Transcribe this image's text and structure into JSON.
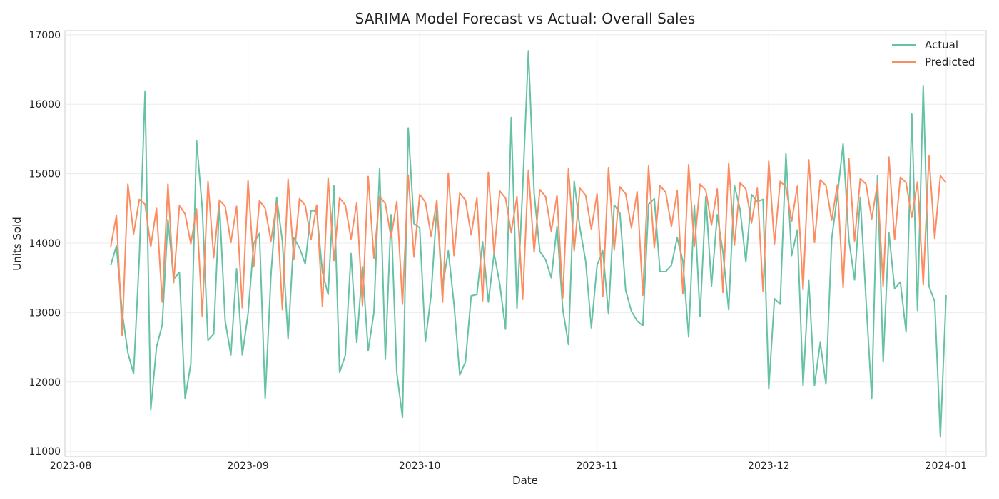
{
  "chart_data": {
    "type": "line",
    "title": "SARIMA Model Forecast vs Actual: Overall Sales",
    "xlabel": "Date",
    "ylabel": "Units Sold",
    "x_start": "2023-08-08",
    "x_end": "2024-01-01",
    "xlim": [
      "2023-07-31",
      "2024-01-08"
    ],
    "ylim": [
      10930,
      17060
    ],
    "x_ticks": [
      "2023-08",
      "2023-09",
      "2023-10",
      "2023-11",
      "2023-12",
      "2024-01"
    ],
    "x_tick_dates": [
      "2023-08-01",
      "2023-09-01",
      "2023-10-01",
      "2023-11-01",
      "2023-12-01",
      "2024-01-01"
    ],
    "y_ticks": [
      11000,
      12000,
      13000,
      14000,
      15000,
      16000,
      17000
    ],
    "grid": true,
    "legend_position": "top-right",
    "series": [
      {
        "name": "Actual",
        "color": "#66c2a5",
        "values": [
          13680,
          13960,
          13000,
          12420,
          12120,
          13800,
          16190,
          11600,
          12500,
          12820,
          14340,
          13480,
          13580,
          11760,
          12260,
          15480,
          14500,
          12600,
          12690,
          14570,
          12880,
          12390,
          13630,
          12390,
          12980,
          14000,
          14140,
          11760,
          13530,
          14660,
          14030,
          12620,
          14080,
          13930,
          13700,
          14470,
          14460,
          13580,
          13260,
          14830,
          12140,
          12380,
          13850,
          12570,
          13660,
          12450,
          13000,
          15080,
          12330,
          14410,
          12130,
          11490,
          15660,
          14280,
          14220,
          12580,
          13260,
          14520,
          13370,
          13890,
          13120,
          12100,
          12290,
          13240,
          13260,
          14020,
          13150,
          13850,
          13410,
          12760,
          15810,
          13060,
          14790,
          16770,
          14720,
          13880,
          13760,
          13500,
          14240,
          13050,
          12540,
          14890,
          14220,
          13740,
          12780,
          13680,
          13890,
          12980,
          14550,
          14430,
          13320,
          13020,
          12880,
          12810,
          14560,
          14640,
          13590,
          13590,
          13680,
          14080,
          13740,
          12650,
          14550,
          12950,
          14670,
          13380,
          14410,
          13870,
          13040,
          14830,
          14480,
          13730,
          14700,
          14600,
          14630,
          11900,
          13200,
          13120,
          15290,
          13820,
          14190,
          11950,
          13460,
          11950,
          12570,
          11970,
          14060,
          14690,
          15430,
          14050,
          13470,
          14660,
          13190,
          11760,
          14970,
          12290,
          14150,
          13340,
          13440,
          12720,
          15860,
          13030,
          16270,
          13380,
          13160,
          11210,
          13250
        ]
      },
      {
        "name": "Predicted",
        "color": "#fc8d62",
        "values": [
          13950,
          14400,
          12670,
          14850,
          14130,
          14630,
          14560,
          13950,
          14500,
          13150,
          14850,
          13430,
          14540,
          14420,
          13990,
          14490,
          12950,
          14890,
          13790,
          14620,
          14530,
          14010,
          14530,
          13070,
          14900,
          13660,
          14610,
          14500,
          14030,
          14570,
          13040,
          14920,
          13760,
          14640,
          14540,
          14050,
          14550,
          13090,
          14940,
          13750,
          14650,
          14550,
          14060,
          14580,
          13100,
          14960,
          13780,
          14670,
          14570,
          14080,
          14600,
          13120,
          14980,
          13800,
          14700,
          14590,
          14100,
          14620,
          13150,
          15010,
          13820,
          14720,
          14620,
          14120,
          14650,
          13170,
          15020,
          13850,
          14750,
          14650,
          14150,
          14670,
          13190,
          15050,
          13870,
          14770,
          14670,
          14170,
          14690,
          13210,
          15070,
          13890,
          14790,
          14690,
          14200,
          14710,
          13230,
          15090,
          13900,
          14810,
          14710,
          14220,
          14740,
          13250,
          15110,
          13930,
          14830,
          14730,
          14240,
          14760,
          13270,
          15130,
          13950,
          14850,
          14760,
          14260,
          14780,
          13290,
          15150,
          13970,
          14870,
          14780,
          14290,
          14790,
          13310,
          15180,
          13990,
          14890,
          14810,
          14310,
          14820,
          13330,
          15200,
          14010,
          14910,
          14830,
          14330,
          14840,
          13360,
          15220,
          14030,
          14930,
          14850,
          14350,
          14860,
          13380,
          15240,
          14050,
          14950,
          14870,
          14370,
          14880,
          13400,
          15260,
          14070,
          14970,
          14870
        ]
      }
    ]
  }
}
